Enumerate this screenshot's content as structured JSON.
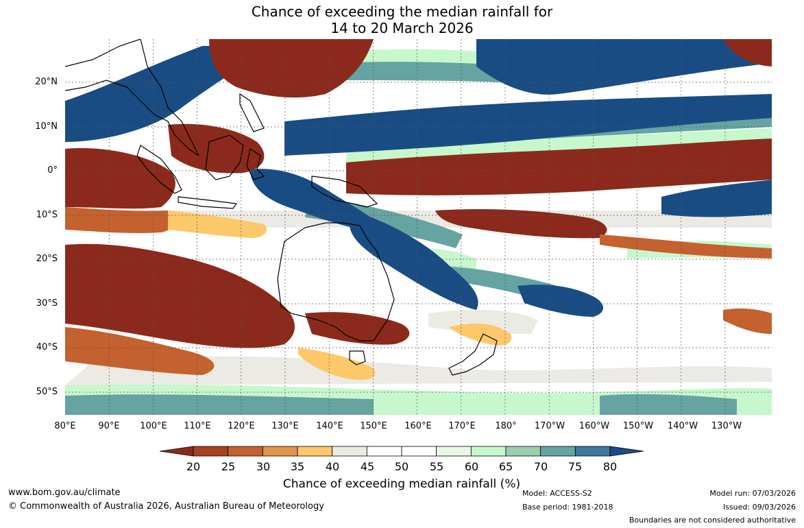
{
  "title": {
    "line1": "Chance of exceeding the median rainfall for",
    "line2": "14 to 20 March 2026"
  },
  "map": {
    "lat_labels": [
      "20°N",
      "10°N",
      "0°",
      "10°S",
      "20°S",
      "30°S",
      "40°S",
      "50°S"
    ],
    "lon_labels": [
      "80°E",
      "90°E",
      "100°E",
      "110°E",
      "120°E",
      "130°E",
      "140°E",
      "150°E",
      "160°E",
      "170°E",
      "180°",
      "170°W",
      "160°W",
      "150°W",
      "140°W",
      "130°W"
    ]
  },
  "colorbar": {
    "ticks": [
      "20",
      "25",
      "30",
      "35",
      "40",
      "45",
      "50",
      "55",
      "60",
      "65",
      "70",
      "75",
      "80"
    ],
    "colors": [
      "#8b2a1c",
      "#a8411f",
      "#c4612f",
      "#e0954a",
      "#fdc86a",
      "#eceae4",
      "#ffffff",
      "#ffffff",
      "#e9f8e6",
      "#c7f7cd",
      "#9bcdb1",
      "#66a3a3",
      "#3e7898",
      "#1a4c84"
    ],
    "label": "Chance of exceeding median rainfall (%)"
  },
  "footer": {
    "website": "www.bom.gov.au/climate",
    "copyright": "© Commonwealth of Australia 2026, Australian Bureau of Meteorology",
    "model": "Model: ACCESS-S2",
    "base_period": "Base period: 1981-2018",
    "model_run": "Model run: 07/03/2026",
    "issued": "Issued: 09/03/2026",
    "disclaimer": "Boundaries are not considered authoritative"
  }
}
